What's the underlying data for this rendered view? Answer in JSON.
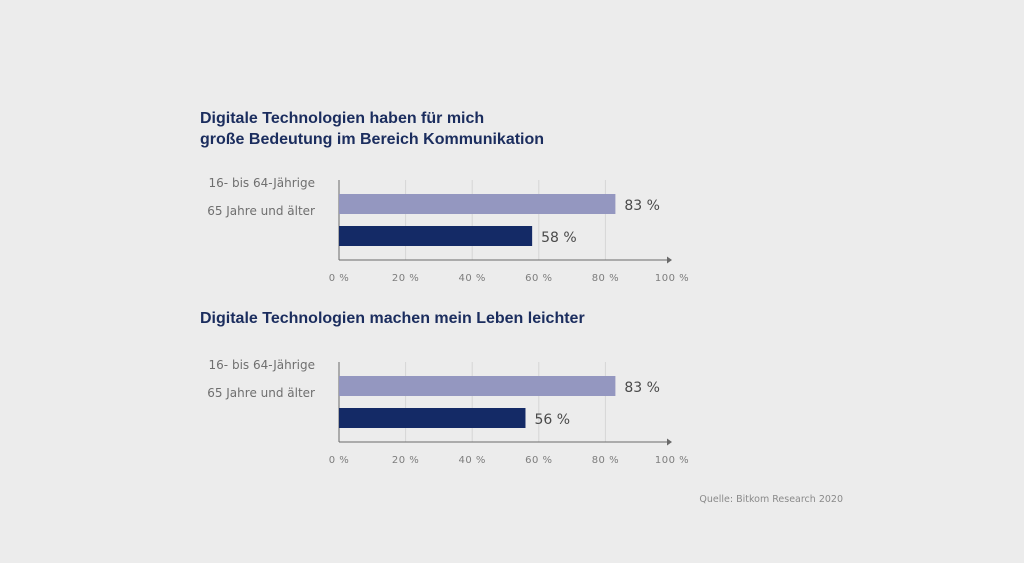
{
  "chart_data": [
    {
      "type": "bar",
      "orientation": "horizontal",
      "title_lines": [
        "Digitale Technologien haben für mich",
        "große Bedeutung im Bereich Kommunikation"
      ],
      "categories": [
        "16- bis 64-Jährige",
        "65 Jahre und älter"
      ],
      "values": [
        83,
        58
      ],
      "value_labels": [
        "83 %",
        "58 %"
      ],
      "xlim": [
        0,
        100
      ],
      "xticks": [
        0,
        20,
        40,
        60,
        80,
        100
      ],
      "xtick_labels": [
        "0 %",
        "20 %",
        "40 %",
        "60 %",
        "80 %",
        "100 %"
      ],
      "grid": true,
      "colors": [
        "#9497c0",
        "#142a66"
      ]
    },
    {
      "type": "bar",
      "orientation": "horizontal",
      "title_lines": [
        "Digitale Technologien machen mein Leben leichter"
      ],
      "categories": [
        "16- bis 64-Jährige",
        "65 Jahre und älter"
      ],
      "values": [
        83,
        56
      ],
      "value_labels": [
        "83 %",
        "56 %"
      ],
      "xlim": [
        0,
        100
      ],
      "xticks": [
        0,
        20,
        40,
        60,
        80,
        100
      ],
      "xtick_labels": [
        "0 %",
        "20 %",
        "40 %",
        "60 %",
        "80 %",
        "100 %"
      ],
      "grid": true,
      "colors": [
        "#9497c0",
        "#142a66"
      ]
    }
  ],
  "source": "Quelle: Bitkom Research 2020",
  "colors": {
    "background": "#ececec",
    "title": "#1b2d5e",
    "grid": "#d6d6d6",
    "axis": "#6a6a6a"
  }
}
